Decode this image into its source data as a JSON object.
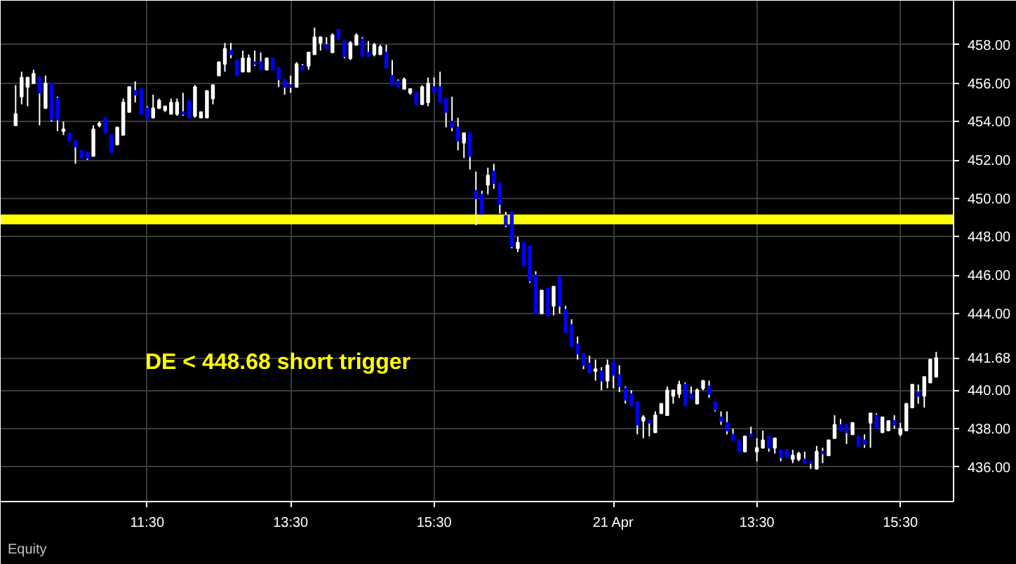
{
  "chart_data": {
    "type": "candlestick",
    "categories": [
      null,
      null,
      null,
      null,
      null,
      null,
      null,
      null,
      null,
      null,
      null,
      null,
      null,
      null,
      null,
      null,
      null,
      null,
      null,
      null,
      null,
      null,
      "11:30",
      null,
      null,
      null,
      null,
      null,
      null,
      null,
      null,
      null,
      null,
      null,
      null,
      null,
      null,
      null,
      null,
      null,
      null,
      null,
      null,
      null,
      null,
      null,
      "13:30",
      null,
      null,
      null,
      null,
      null,
      null,
      null,
      null,
      null,
      null,
      null,
      null,
      null,
      null,
      null,
      null,
      null,
      null,
      null,
      null,
      null,
      null,
      null,
      "15:30",
      null,
      null,
      null,
      null,
      null,
      null,
      null,
      null,
      null,
      null,
      null,
      null,
      null,
      null,
      null,
      null,
      null,
      null,
      null,
      null,
      null,
      null,
      null,
      null,
      null,
      null,
      null,
      null,
      null,
      "21 Apr",
      null,
      null,
      null,
      null,
      null,
      null,
      null,
      null,
      null,
      null,
      null,
      null,
      null,
      null,
      null,
      null,
      null,
      null,
      null,
      null,
      null,
      null,
      null,
      "13:30",
      null,
      null,
      null,
      null,
      null,
      null,
      null,
      null,
      null,
      null,
      null,
      null,
      null,
      null,
      null,
      null,
      null,
      null,
      null,
      null,
      null,
      null,
      null,
      "15:30",
      null,
      null,
      null,
      null,
      null,
      null
    ],
    "ohlc": [
      [
        453.8,
        455.9,
        453.8,
        454.4
      ],
      [
        455.3,
        456.6,
        454.9,
        456.3
      ],
      [
        455.8,
        456.3,
        454.8,
        456.3
      ],
      [
        456.0,
        456.7,
        456.0,
        456.5
      ],
      [
        456.3,
        456.3,
        453.8,
        455.5
      ],
      [
        454.7,
        456.4,
        454.7,
        456.0
      ],
      [
        456.0,
        456.0,
        454.0,
        454.1
      ],
      [
        455.2,
        455.3,
        453.5,
        454.1
      ],
      [
        453.5,
        454.0,
        453.3,
        453.6
      ],
      [
        453.4,
        453.4,
        453.0,
        453.0
      ],
      [
        453.0,
        453.0,
        451.8,
        452.7
      ],
      [
        452.5,
        452.5,
        452.1,
        452.1
      ],
      [
        452.4,
        452.4,
        452.0,
        452.1
      ],
      [
        452.2,
        453.8,
        452.2,
        453.6
      ],
      [
        453.8,
        454.0,
        453.7,
        453.9
      ],
      [
        454.2,
        454.2,
        453.4,
        453.4
      ],
      [
        453.3,
        453.3,
        452.4,
        452.4
      ],
      [
        452.8,
        453.7,
        452.8,
        453.7
      ],
      [
        453.3,
        455.2,
        453.3,
        455.0
      ],
      [
        454.5,
        455.8,
        454.5,
        455.8
      ],
      [
        455.6,
        456.1,
        455.0,
        455.4
      ],
      [
        455.7,
        455.7,
        454.4,
        454.4
      ],
      [
        454.7,
        454.8,
        454.1,
        454.1
      ],
      [
        454.2,
        455.4,
        454.2,
        454.7
      ],
      [
        454.7,
        455.2,
        454.7,
        455.1
      ],
      [
        454.6,
        454.8,
        454.5,
        454.8
      ],
      [
        454.4,
        455.2,
        454.4,
        455.0
      ],
      [
        454.4,
        455.2,
        454.3,
        455.0
      ],
      [
        454.5,
        455.5,
        454.3,
        454.4
      ],
      [
        455.1,
        455.1,
        454.2,
        454.2
      ],
      [
        454.3,
        455.9,
        454.2,
        455.8
      ],
      [
        454.2,
        454.5,
        454.2,
        454.5
      ],
      [
        454.2,
        455.6,
        454.2,
        455.6
      ],
      [
        455.2,
        455.9,
        454.9,
        455.9
      ],
      [
        456.4,
        457.1,
        456.4,
        457.1
      ],
      [
        457.0,
        458.1,
        456.6,
        457.8
      ],
      [
        457.7,
        458.1,
        457.3,
        457.5
      ],
      [
        457.2,
        457.2,
        456.4,
        456.4
      ],
      [
        456.6,
        457.7,
        456.6,
        457.3
      ],
      [
        456.6,
        457.5,
        456.6,
        457.3
      ],
      [
        457.1,
        457.7,
        456.9,
        457.0
      ],
      [
        457.1,
        457.6,
        456.7,
        456.7
      ],
      [
        456.7,
        457.3,
        456.7,
        457.3
      ],
      [
        457.3,
        457.3,
        456.7,
        456.7
      ],
      [
        456.8,
        456.8,
        455.8,
        456.2
      ],
      [
        456.2,
        456.2,
        455.4,
        455.8
      ],
      [
        455.9,
        456.4,
        455.5,
        455.8
      ],
      [
        455.8,
        457.1,
        455.8,
        457.0
      ],
      [
        456.9,
        457.0,
        456.7,
        456.7
      ],
      [
        456.9,
        457.6,
        456.7,
        457.6
      ],
      [
        457.5,
        458.9,
        457.5,
        458.4
      ],
      [
        458.1,
        458.4,
        457.7,
        458.4
      ],
      [
        458.0,
        458.4,
        457.8,
        457.8
      ],
      [
        457.6,
        458.6,
        457.6,
        458.5
      ],
      [
        458.8,
        458.8,
        458.3,
        458.3
      ],
      [
        458.2,
        458.2,
        457.3,
        457.4
      ],
      [
        457.3,
        458.2,
        457.2,
        458.1
      ],
      [
        458.0,
        458.6,
        458.0,
        458.5
      ],
      [
        458.3,
        458.4,
        457.4,
        457.4
      ],
      [
        457.6,
        458.2,
        457.4,
        457.4
      ],
      [
        457.5,
        458.1,
        457.4,
        458.0
      ],
      [
        457.5,
        458.0,
        457.5,
        457.9
      ],
      [
        457.6,
        458.0,
        456.8,
        456.8
      ],
      [
        456.4,
        457.2,
        455.9,
        455.9
      ],
      [
        456.1,
        456.2,
        455.8,
        455.8
      ],
      [
        455.7,
        456.3,
        455.7,
        456.2
      ],
      [
        455.5,
        455.7,
        455.4,
        455.7
      ],
      [
        455.5,
        455.5,
        454.9,
        454.9
      ],
      [
        454.9,
        455.9,
        454.9,
        455.8
      ],
      [
        455.0,
        456.3,
        454.8,
        456.0
      ],
      [
        455.8,
        456.3,
        455.5,
        455.5
      ],
      [
        455.8,
        456.6,
        455.0,
        455.0
      ],
      [
        455.2,
        455.2,
        453.7,
        454.5
      ],
      [
        454.0,
        455.3,
        453.5,
        453.7
      ],
      [
        453.7,
        454.2,
        452.5,
        453.0
      ],
      [
        452.9,
        453.4,
        452.1,
        453.4
      ],
      [
        453.4,
        453.4,
        451.5,
        452.2
      ],
      [
        450.4,
        451.4,
        448.6,
        450.0
      ],
      [
        450.2,
        450.4,
        449.2,
        449.2
      ],
      [
        450.7,
        451.6,
        450.2,
        451.2
      ],
      [
        451.4,
        451.8,
        450.5,
        450.8
      ],
      [
        450.8,
        450.8,
        449.2,
        449.7
      ],
      [
        449.1,
        449.3,
        448.5,
        448.6
      ],
      [
        449.3,
        449.3,
        447.4,
        447.5
      ],
      [
        447.4,
        448.0,
        447.2,
        447.7
      ],
      [
        447.7,
        447.7,
        446.5,
        446.5
      ],
      [
        447.5,
        447.5,
        445.6,
        445.7
      ],
      [
        446.0,
        446.2,
        444.0,
        444.0
      ],
      [
        444.0,
        445.2,
        444.0,
        445.2
      ],
      [
        445.3,
        445.3,
        443.9,
        443.9
      ],
      [
        444.4,
        445.4,
        443.9,
        445.4
      ],
      [
        445.9,
        445.9,
        444.0,
        444.4
      ],
      [
        444.2,
        444.4,
        443.0,
        443.0
      ],
      [
        443.4,
        443.7,
        442.3,
        442.3
      ],
      [
        442.4,
        442.8,
        441.6,
        441.9
      ],
      [
        441.9,
        441.9,
        441.1,
        441.3
      ],
      [
        441.4,
        441.8,
        440.9,
        440.9
      ],
      [
        441.0,
        441.6,
        440.5,
        441.1
      ],
      [
        441.0,
        441.2,
        440.0,
        440.5
      ],
      [
        440.5,
        441.6,
        440.1,
        441.3
      ],
      [
        441.5,
        441.5,
        440.1,
        440.8
      ],
      [
        440.8,
        441.3,
        439.9,
        440.2
      ],
      [
        440.1,
        440.2,
        439.3,
        439.5
      ],
      [
        439.8,
        440.0,
        439.2,
        439.2
      ],
      [
        439.4,
        439.4,
        437.7,
        438.2
      ],
      [
        438.4,
        438.7,
        437.5,
        438.6
      ],
      [
        438.4,
        438.4,
        437.6,
        438.3
      ],
      [
        437.8,
        438.9,
        437.8,
        438.7
      ],
      [
        438.8,
        439.3,
        438.8,
        439.3
      ],
      [
        438.7,
        440.2,
        438.7,
        440.0
      ],
      [
        439.7,
        440.0,
        439.3,
        440.0
      ],
      [
        439.8,
        440.5,
        439.6,
        440.3
      ],
      [
        440.3,
        440.4,
        439.2,
        439.2
      ],
      [
        439.8,
        440.2,
        439.6,
        439.6
      ],
      [
        439.3,
        440.1,
        439.3,
        440.0
      ],
      [
        440.1,
        440.5,
        440.0,
        440.5
      ],
      [
        440.2,
        440.5,
        439.6,
        439.8
      ],
      [
        439.4,
        439.4,
        438.9,
        439.0
      ],
      [
        438.6,
        438.9,
        438.2,
        438.4
      ],
      [
        438.3,
        438.9,
        437.7,
        437.9
      ],
      [
        437.7,
        438.0,
        437.4,
        437.4
      ],
      [
        437.4,
        437.4,
        436.8,
        436.8
      ],
      [
        436.8,
        437.6,
        436.8,
        437.6
      ],
      [
        437.7,
        438.1,
        437.6,
        437.6
      ],
      [
        436.8,
        437.5,
        436.3,
        437.0
      ],
      [
        437.0,
        437.9,
        437.0,
        437.4
      ],
      [
        437.6,
        437.6,
        436.8,
        437.0
      ],
      [
        437.0,
        437.5,
        436.7,
        437.5
      ],
      [
        436.9,
        436.9,
        436.3,
        436.5
      ],
      [
        436.9,
        436.9,
        436.5,
        436.5
      ],
      [
        436.4,
        436.9,
        436.2,
        436.6
      ],
      [
        436.4,
        436.8,
        436.3,
        436.7
      ],
      [
        436.4,
        436.8,
        436.2,
        436.2
      ],
      [
        436.3,
        436.3,
        435.9,
        436.2
      ],
      [
        435.9,
        437.1,
        435.9,
        436.8
      ],
      [
        436.8,
        437.0,
        436.2,
        436.7
      ],
      [
        436.6,
        437.4,
        436.6,
        437.4
      ],
      [
        437.5,
        438.7,
        437.5,
        438.2
      ],
      [
        438.2,
        438.5,
        437.9,
        437.9
      ],
      [
        438.2,
        438.2,
        437.2,
        437.8
      ],
      [
        437.7,
        438.3,
        437.7,
        438.3
      ],
      [
        437.6,
        437.6,
        437.1,
        437.1
      ],
      [
        437.4,
        437.7,
        437.0,
        437.2
      ],
      [
        438.3,
        438.8,
        437.0,
        438.8
      ],
      [
        438.7,
        438.8,
        438.0,
        438.0
      ],
      [
        437.8,
        438.6,
        437.8,
        438.6
      ],
      [
        437.9,
        438.4,
        437.9,
        438.4
      ],
      [
        438.4,
        438.7,
        438.0,
        438.2
      ],
      [
        437.7,
        438.3,
        437.6,
        438.0
      ],
      [
        437.9,
        439.3,
        437.9,
        439.3
      ],
      [
        439.1,
        440.3,
        439.1,
        440.3
      ],
      [
        439.9,
        440.3,
        439.3,
        439.7
      ],
      [
        439.7,
        440.7,
        439.1,
        440.7
      ],
      [
        440.4,
        441.6,
        440.4,
        441.6
      ],
      [
        440.7,
        442.0,
        440.7,
        441.68
      ]
    ],
    "colors": [
      "#ffffff",
      "#ffffff",
      "#ffffff",
      "#ffffff",
      "#0000ff",
      "#ffffff",
      "#0000ff",
      "#0000ff",
      "#ffffff",
      "#0000ff",
      "#0000ff",
      "#0000ff",
      "#0000ff",
      "#ffffff",
      "#ffffff",
      "#0000ff",
      "#0000ff",
      "#ffffff",
      "#ffffff",
      "#ffffff",
      "#0000ff",
      "#0000ff",
      "#0000ff",
      "#ffffff",
      "#ffffff",
      "#ffffff",
      "#ffffff",
      "#ffffff",
      "#0000ff",
      "#0000ff",
      "#ffffff",
      "#ffffff",
      "#ffffff",
      "#ffffff",
      "#ffffff",
      "#ffffff",
      "#0000ff",
      "#0000ff",
      "#ffffff",
      "#ffffff",
      "#0000ff",
      "#0000ff",
      "#ffffff",
      "#0000ff",
      "#0000ff",
      "#0000ff",
      "#0000ff",
      "#ffffff",
      "#0000ff",
      "#ffffff",
      "#ffffff",
      "#ffffff",
      "#0000ff",
      "#ffffff",
      "#0000ff",
      "#0000ff",
      "#ffffff",
      "#ffffff",
      "#0000ff",
      "#0000ff",
      "#ffffff",
      "#ffffff",
      "#0000ff",
      "#0000ff",
      "#0000ff",
      "#ffffff",
      "#ffffff",
      "#0000ff",
      "#ffffff",
      "#ffffff",
      "#0000ff",
      "#0000ff",
      "#0000ff",
      "#0000ff",
      "#0000ff",
      "#ffffff",
      "#0000ff",
      "#0000ff",
      "#0000ff",
      "#ffffff",
      "#0000ff",
      "#0000ff",
      "#0000ff",
      "#0000ff",
      "#ffffff",
      "#0000ff",
      "#0000ff",
      "#0000ff",
      "#ffffff",
      "#0000ff",
      "#ffffff",
      "#0000ff",
      "#0000ff",
      "#0000ff",
      "#0000ff",
      "#0000ff",
      "#0000ff",
      "#ffffff",
      "#0000ff",
      "#ffffff",
      "#0000ff",
      "#0000ff",
      "#0000ff",
      "#0000ff",
      "#0000ff",
      "#ffffff",
      "#0000ff",
      "#ffffff",
      "#ffffff",
      "#ffffff",
      "#ffffff",
      "#ffffff",
      "#0000ff",
      "#0000ff",
      "#ffffff",
      "#ffffff",
      "#0000ff",
      "#0000ff",
      "#0000ff",
      "#0000ff",
      "#0000ff",
      "#0000ff",
      "#ffffff",
      "#0000ff",
      "#ffffff",
      "#ffffff",
      "#0000ff",
      "#ffffff",
      "#0000ff",
      "#0000ff",
      "#ffffff",
      "#ffffff",
      "#0000ff",
      "#0000ff",
      "#ffffff",
      "#0000ff",
      "#ffffff",
      "#ffffff",
      "#0000ff",
      "#0000ff",
      "#ffffff",
      "#0000ff",
      "#0000ff",
      "#ffffff",
      "#0000ff",
      "#ffffff",
      "#ffffff",
      "#0000ff",
      "#ffffff",
      "#ffffff",
      "#ffffff",
      "#0000ff",
      "#ffffff",
      "#ffffff",
      "#ffffff"
    ],
    "ylim": [
      434.2,
      460.3
    ],
    "yticks": [
      {
        "value": 436,
        "label": "436.00"
      },
      {
        "value": 438,
        "label": "438.00"
      },
      {
        "value": 440,
        "label": "440.00"
      },
      {
        "value": 441.68,
        "label": "441.68"
      },
      {
        "value": 444,
        "label": "444.00"
      },
      {
        "value": 446,
        "label": "446.00"
      },
      {
        "value": 448,
        "label": "448.00"
      },
      {
        "value": 450,
        "label": "450.00"
      },
      {
        "value": 452,
        "label": "452.00"
      },
      {
        "value": 454,
        "label": "454.00"
      },
      {
        "value": 456,
        "label": "456.00"
      },
      {
        "value": 458,
        "label": "458.00"
      }
    ],
    "grid": true,
    "ref_lines": [
      {
        "axis": "y",
        "value": 448.9,
        "color": "#ffff00"
      }
    ],
    "annotations": [
      "DE < 448.68  short trigger",
      "Equity"
    ]
  }
}
